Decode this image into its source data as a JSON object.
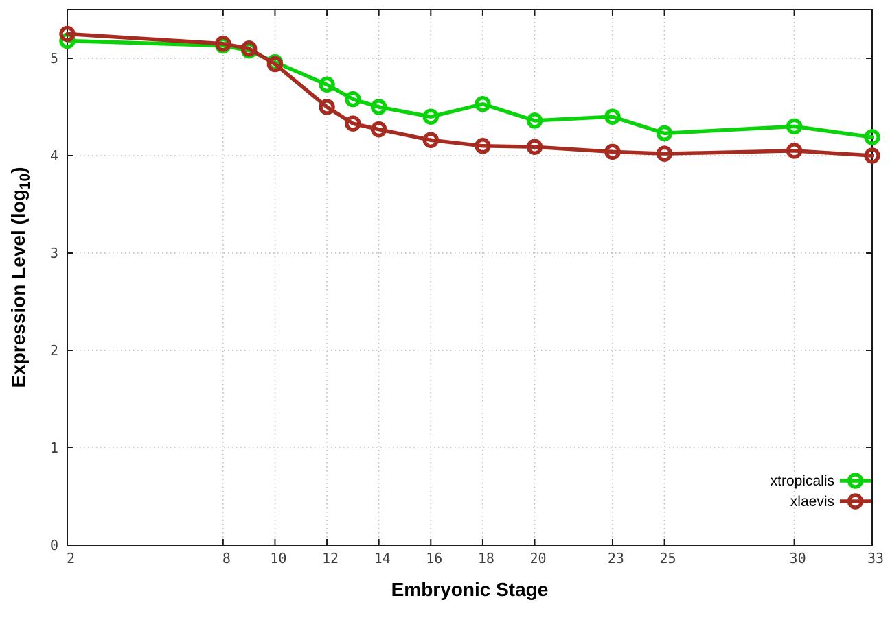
{
  "chart_data": {
    "type": "line",
    "title": "",
    "xlabel": "Embryonic Stage",
    "ylabel": {
      "text": "Expression Level (log10)",
      "main": "Expression Level (log",
      "sub": "10",
      "suffix": ")"
    },
    "x": [
      2,
      8,
      9,
      10,
      12,
      13,
      14,
      16,
      18,
      20,
      23,
      25,
      30,
      33
    ],
    "series": [
      {
        "name": "xtropicalis",
        "color": "#0bd30b",
        "values": [
          5.18,
          5.13,
          5.08,
          4.96,
          4.73,
          4.58,
          4.5,
          4.4,
          4.53,
          4.36,
          4.4,
          4.23,
          4.3,
          4.19
        ]
      },
      {
        "name": "xlaevis",
        "color": "#a62c22",
        "values": [
          5.25,
          5.15,
          5.1,
          4.94,
          4.5,
          4.33,
          4.27,
          4.16,
          4.1,
          4.09,
          4.04,
          4.02,
          4.05,
          4.0
        ]
      }
    ],
    "xticks": [
      2,
      8,
      10,
      12,
      14,
      16,
      18,
      20,
      23,
      25,
      30,
      33
    ],
    "yticks": [
      0,
      1,
      2,
      3,
      4,
      5
    ],
    "xlim": [
      2,
      33
    ],
    "ylim": [
      0,
      5.5
    ],
    "grid": true,
    "legend_position": "inside-bottom-right",
    "marker": "open-circle",
    "colors": {
      "background": "#ffffff",
      "border": "#1a1a1a",
      "grid": "#b8b8b8",
      "tick_label": "#3d3d3d"
    }
  }
}
